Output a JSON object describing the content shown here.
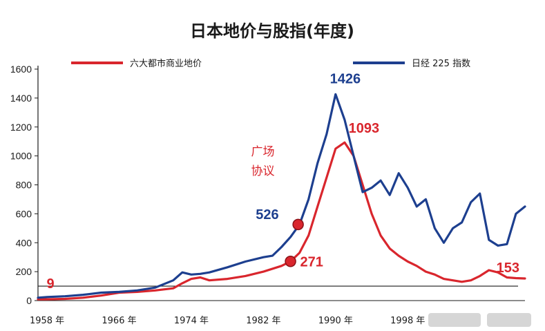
{
  "chart_data": {
    "type": "line",
    "title": "日本地价与股指(年度)",
    "xlabel": "",
    "ylabel": "",
    "ylim": [
      0,
      1600
    ],
    "xlim": [
      1957,
      2011
    ],
    "yticks": [
      0,
      200,
      400,
      600,
      800,
      1000,
      1200,
      1400,
      1600
    ],
    "xticks": [
      {
        "year": 1958,
        "label": "1958 年"
      },
      {
        "year": 1966,
        "label": "1966 年"
      },
      {
        "year": 1974,
        "label": "1974 年"
      },
      {
        "year": 1982,
        "label": "1982 年"
      },
      {
        "year": 1990,
        "label": "1990 年"
      },
      {
        "year": 1998,
        "label": "1998 年"
      }
    ],
    "reference_line": 100,
    "legend": {
      "placement": "top"
    },
    "series": [
      {
        "name": "六大都市商业地价",
        "color": "#d9262d",
        "x": [
          1957,
          1958,
          1960,
          1962,
          1964,
          1966,
          1968,
          1970,
          1972,
          1973,
          1974,
          1975,
          1976,
          1978,
          1980,
          1982,
          1984,
          1985,
          1986,
          1987,
          1988,
          1989,
          1990,
          1991,
          1992,
          1993,
          1994,
          1995,
          1996,
          1997,
          1998,
          1999,
          2000,
          2001,
          2002,
          2003,
          2004,
          2005,
          2006,
          2007,
          2008,
          2009,
          2010,
          2011
        ],
        "values": [
          9,
          9,
          12,
          20,
          35,
          55,
          60,
          70,
          85,
          120,
          150,
          160,
          140,
          150,
          170,
          200,
          240,
          271,
          330,
          450,
          650,
          850,
          1050,
          1093,
          1000,
          800,
          600,
          450,
          360,
          310,
          270,
          240,
          200,
          180,
          150,
          140,
          130,
          140,
          170,
          210,
          195,
          160,
          155,
          153
        ]
      },
      {
        "name": "日经 225 指数",
        "color": "#1d3f8f",
        "x": [
          1957,
          1958,
          1960,
          1962,
          1964,
          1966,
          1968,
          1970,
          1972,
          1973,
          1974,
          1975,
          1976,
          1978,
          1980,
          1982,
          1983,
          1984,
          1985,
          1986,
          1987,
          1988,
          1989,
          1990,
          1991,
          1992,
          1993,
          1994,
          1995,
          1996,
          1997,
          1998,
          1999,
          2000,
          2001,
          2002,
          2003,
          2004,
          2005,
          2006,
          2007,
          2008,
          2009,
          2010,
          2011
        ],
        "values": [
          20,
          25,
          30,
          40,
          55,
          60,
          70,
          90,
          140,
          195,
          180,
          185,
          195,
          230,
          270,
          300,
          310,
          370,
          440,
          526,
          700,
          950,
          1150,
          1426,
          1250,
          1000,
          750,
          780,
          830,
          730,
          880,
          780,
          650,
          700,
          500,
          400,
          500,
          540,
          680,
          740,
          420,
          380,
          390,
          600,
          650
        ]
      }
    ],
    "annotations": [
      {
        "text": "1426",
        "series": 1,
        "x": 1990,
        "y": 1426
      },
      {
        "text": "1093",
        "series": 0,
        "x": 1991,
        "y": 1093
      },
      {
        "text": "526",
        "series": 1,
        "x": 1986,
        "y": 526
      },
      {
        "text": "271",
        "series": 0,
        "x": 1985,
        "y": 271
      },
      {
        "text": "153",
        "series": 0,
        "x": 2011,
        "y": 153
      },
      {
        "text": "9",
        "series": 0,
        "x": 1958,
        "y": 9
      }
    ],
    "event_note": {
      "lines": [
        "广场",
        "协议"
      ],
      "year": 1985
    }
  }
}
